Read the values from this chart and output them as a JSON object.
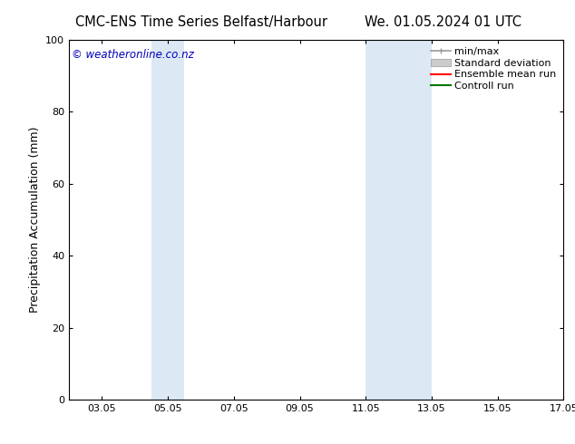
{
  "title_left": "CMC-ENS Time Series Belfast/Harbour",
  "title_right": "We. 01.05.2024 01 UTC",
  "ylabel": "Precipitation Accumulation (mm)",
  "xlim": [
    2.05,
    17.05
  ],
  "ylim": [
    0,
    100
  ],
  "yticks": [
    0,
    20,
    40,
    60,
    80,
    100
  ],
  "xticks": [
    3.05,
    5.05,
    7.05,
    9.05,
    11.05,
    13.05,
    15.05,
    17.05
  ],
  "xticklabels": [
    "03.05",
    "05.05",
    "07.05",
    "09.05",
    "11.05",
    "13.05",
    "15.05",
    "17.05"
  ],
  "shaded_regions": [
    {
      "xmin": 4.55,
      "xmax": 5.55,
      "color": "#dce9f5"
    },
    {
      "xmin": 11.05,
      "xmax": 13.05,
      "color": "#dce9f5"
    }
  ],
  "watermark_text": "© weatheronline.co.nz",
  "watermark_color": "#0000bb",
  "legend_entries": [
    {
      "label": "min/max",
      "color": "#999999",
      "lw": 1.2,
      "style": "minmax"
    },
    {
      "label": "Standard deviation",
      "color": "#cccccc",
      "lw": 6,
      "style": "std"
    },
    {
      "label": "Ensemble mean run",
      "color": "#ff0000",
      "lw": 1.5,
      "style": "line"
    },
    {
      "label": "Controll run",
      "color": "#007700",
      "lw": 1.5,
      "style": "line"
    }
  ],
  "bg_color": "#ffffff",
  "plot_bg_color": "#ffffff",
  "title_fontsize": 10.5,
  "axis_label_fontsize": 9,
  "tick_fontsize": 8,
  "watermark_fontsize": 8.5,
  "legend_fontsize": 8
}
